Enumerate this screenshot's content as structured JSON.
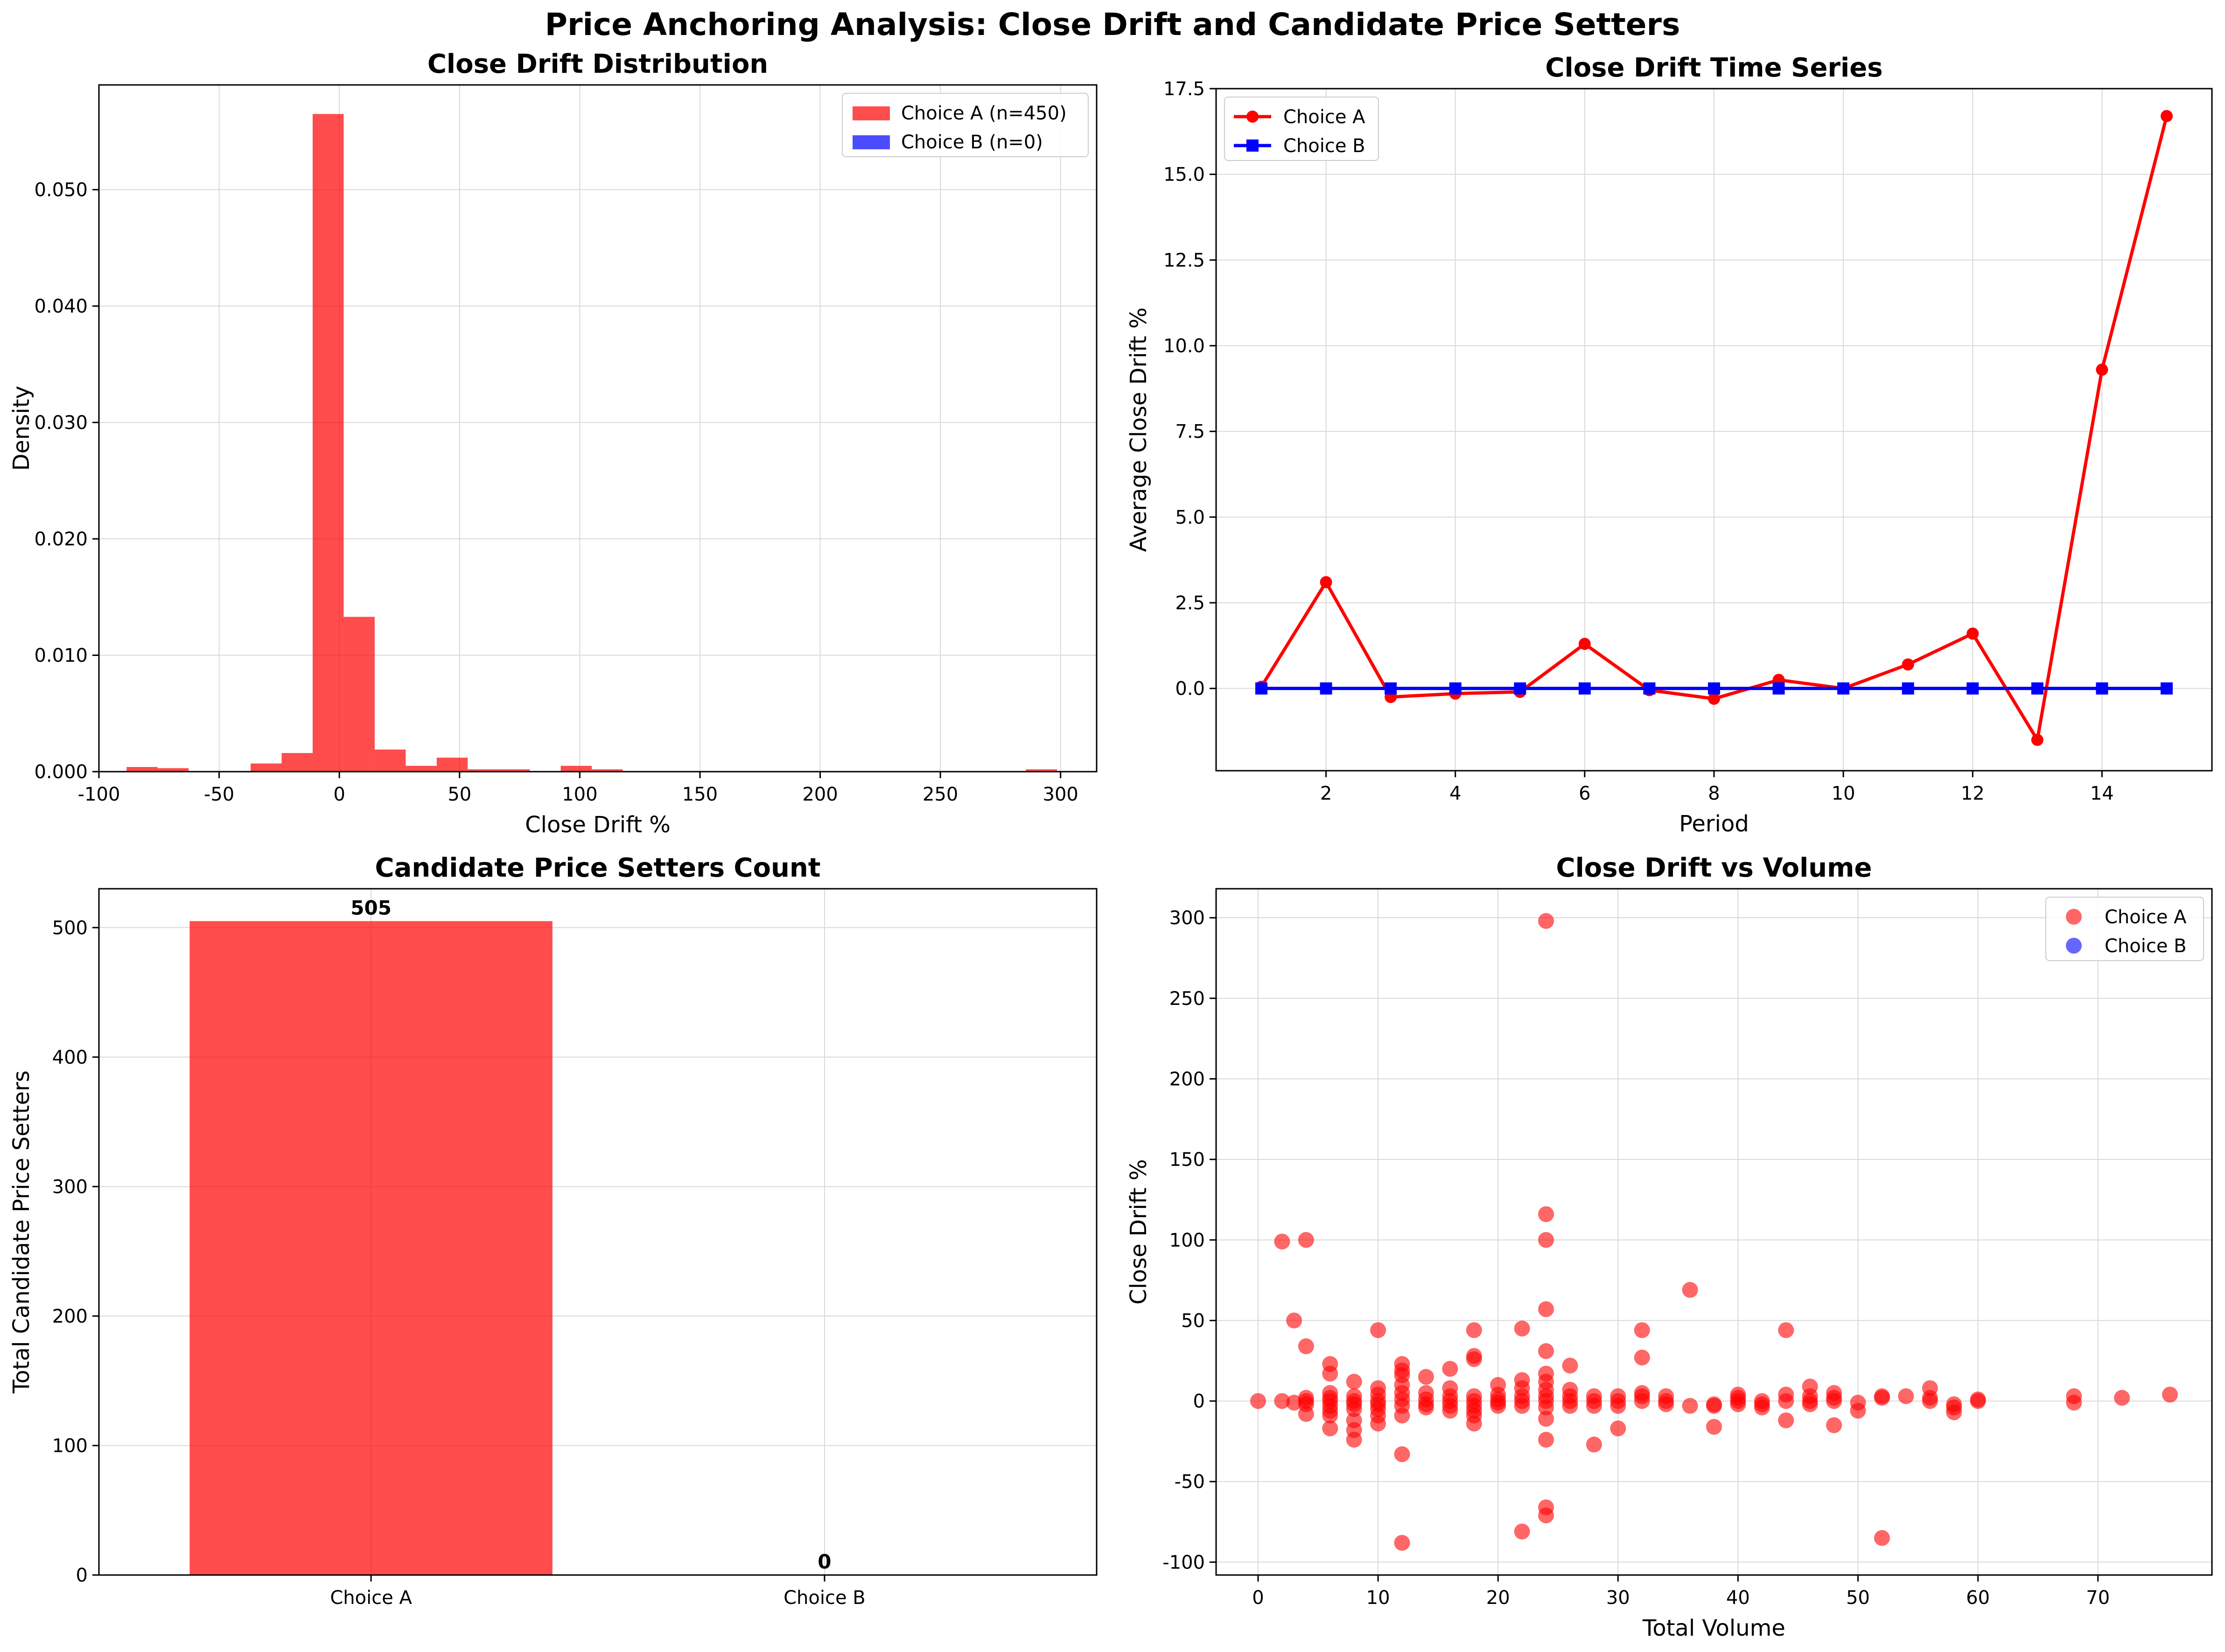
{
  "figure": {
    "title": "Price Anchoring Analysis: Close Drift and Candidate Price Setters"
  },
  "colors": {
    "choice_a": "#ff0000",
    "choice_b": "#0000ff",
    "grid": "#d9d9d9",
    "text": "#000000"
  },
  "chart_data": [
    {
      "id": "hist",
      "type": "bar",
      "title": "Close Drift Distribution",
      "xlabel": "Close Drift %",
      "ylabel": "Density",
      "xlim": [
        -100,
        315
      ],
      "ylim": [
        0,
        0.059
      ],
      "xticks": [
        -100,
        -50,
        0,
        50,
        100,
        150,
        200,
        250,
        300
      ],
      "yticks": [
        0.0,
        0.01,
        0.02,
        0.03,
        0.04,
        0.05
      ],
      "ytick_labels": [
        "0.000",
        "0.010",
        "0.020",
        "0.030",
        "0.040",
        "0.050"
      ],
      "grid": true,
      "legend_position": "upper right",
      "bin_width": 12.9,
      "series": [
        {
          "name": "Choice A (n=450)",
          "color": "#ff0000",
          "alpha": 0.7,
          "bins": [
            {
              "x0": -88.5,
              "value": 0.0004
            },
            {
              "x0": -75.6,
              "value": 0.0003
            },
            {
              "x0": -62.7,
              "value": 0.0
            },
            {
              "x0": -49.8,
              "value": 0.0
            },
            {
              "x0": -36.9,
              "value": 0.0007
            },
            {
              "x0": -24.0,
              "value": 0.0016
            },
            {
              "x0": -11.1,
              "value": 0.0565
            },
            {
              "x0": 1.8,
              "value": 0.0133
            },
            {
              "x0": 14.7,
              "value": 0.0019
            },
            {
              "x0": 27.6,
              "value": 0.0005
            },
            {
              "x0": 40.5,
              "value": 0.0012
            },
            {
              "x0": 53.4,
              "value": 0.0002
            },
            {
              "x0": 66.3,
              "value": 0.0002
            },
            {
              "x0": 79.2,
              "value": 0.0
            },
            {
              "x0": 92.1,
              "value": 0.0005
            },
            {
              "x0": 105.0,
              "value": 0.0002
            },
            {
              "x0": 285.6,
              "value": 0.0002
            }
          ]
        },
        {
          "name": "Choice B (n=0)",
          "color": "#0000ff",
          "alpha": 0.7,
          "bins": []
        }
      ]
    },
    {
      "id": "timeseries",
      "type": "line",
      "title": "Close Drift Time Series",
      "xlabel": "Period",
      "ylabel": "Average Close Drift %",
      "xlim": [
        0.3,
        15.7
      ],
      "ylim": [
        -2.4,
        17.5
      ],
      "xticks": [
        2,
        4,
        6,
        8,
        10,
        12,
        14
      ],
      "yticks": [
        0.0,
        2.5,
        5.0,
        7.5,
        10.0,
        12.5,
        15.0,
        17.5
      ],
      "ytick_labels": [
        "0.0",
        "2.5",
        "5.0",
        "7.5",
        "10.0",
        "12.5",
        "15.0",
        "17.5"
      ],
      "grid": true,
      "legend_position": "upper left",
      "x": [
        1,
        2,
        3,
        4,
        5,
        6,
        7,
        8,
        9,
        10,
        11,
        12,
        13,
        14,
        15
      ],
      "series": [
        {
          "name": "Choice A",
          "color": "#ff0000",
          "marker": "circle",
          "values": [
            0.05,
            3.1,
            -0.25,
            -0.15,
            -0.1,
            1.3,
            -0.05,
            -0.3,
            0.25,
            0.0,
            0.7,
            1.6,
            -1.5,
            9.3,
            16.7
          ]
        },
        {
          "name": "Choice B",
          "color": "#0000ff",
          "marker": "square",
          "values": [
            0,
            0,
            0,
            0,
            0,
            0,
            0,
            0,
            0,
            0,
            0,
            0,
            0,
            0,
            0
          ]
        }
      ]
    },
    {
      "id": "bars",
      "type": "bar",
      "title": "Candidate Price Setters Count",
      "xlabel": "",
      "ylabel": "Total Candidate Price Setters",
      "categories": [
        "Choice A",
        "Choice B"
      ],
      "values": [
        505,
        0
      ],
      "value_labels": [
        "505",
        "0"
      ],
      "ylim": [
        0,
        530
      ],
      "yticks": [
        0,
        100,
        200,
        300,
        400,
        500
      ],
      "ytick_labels": [
        "0",
        "100",
        "200",
        "300",
        "400",
        "500"
      ],
      "grid": true,
      "colors": [
        "#ff0000",
        "#0000ff"
      ],
      "alpha": 0.7
    },
    {
      "id": "scatter",
      "type": "scatter",
      "title": "Close Drift vs Volume",
      "xlabel": "Total Volume",
      "ylabel": "Close Drift %",
      "xlim": [
        -3.5,
        79.5
      ],
      "ylim": [
        -108,
        318
      ],
      "xticks": [
        0,
        10,
        20,
        30,
        40,
        50,
        60,
        70
      ],
      "yticks": [
        -100,
        -50,
        0,
        50,
        100,
        150,
        200,
        250,
        300
      ],
      "grid": true,
      "legend_position": "upper right",
      "series": [
        {
          "name": "Choice A",
          "color": "#ff0000",
          "alpha": 0.6,
          "points": [
            [
              0,
              0
            ],
            [
              2,
              99
            ],
            [
              2,
              0
            ],
            [
              3,
              50
            ],
            [
              3,
              -1
            ],
            [
              4,
              100
            ],
            [
              4,
              34
            ],
            [
              4,
              2
            ],
            [
              4,
              -2
            ],
            [
              4,
              -8
            ],
            [
              4,
              0
            ],
            [
              6,
              23
            ],
            [
              6,
              17
            ],
            [
              6,
              5
            ],
            [
              6,
              0
            ],
            [
              6,
              -3
            ],
            [
              6,
              -6
            ],
            [
              6,
              -9
            ],
            [
              6,
              -17
            ],
            [
              6,
              2
            ],
            [
              8,
              12
            ],
            [
              8,
              3
            ],
            [
              8,
              0
            ],
            [
              8,
              -2
            ],
            [
              8,
              -5
            ],
            [
              8,
              -12
            ],
            [
              8,
              -18
            ],
            [
              8,
              -24
            ],
            [
              10,
              44
            ],
            [
              10,
              8
            ],
            [
              10,
              4
            ],
            [
              10,
              0
            ],
            [
              10,
              -2
            ],
            [
              10,
              -5
            ],
            [
              10,
              -9
            ],
            [
              10,
              -14
            ],
            [
              12,
              23
            ],
            [
              12,
              19
            ],
            [
              12,
              16
            ],
            [
              12,
              10
            ],
            [
              12,
              5
            ],
            [
              12,
              1
            ],
            [
              12,
              -3
            ],
            [
              12,
              -9
            ],
            [
              12,
              -33
            ],
            [
              12,
              -88
            ],
            [
              14,
              15
            ],
            [
              14,
              5
            ],
            [
              14,
              1
            ],
            [
              14,
              -2
            ],
            [
              14,
              -4
            ],
            [
              16,
              20
            ],
            [
              16,
              8
            ],
            [
              16,
              3
            ],
            [
              16,
              0
            ],
            [
              16,
              -3
            ],
            [
              16,
              -6
            ],
            [
              18,
              44
            ],
            [
              18,
              28
            ],
            [
              18,
              26
            ],
            [
              18,
              3
            ],
            [
              18,
              0
            ],
            [
              18,
              -3
            ],
            [
              18,
              -6
            ],
            [
              18,
              -9
            ],
            [
              18,
              -14
            ],
            [
              20,
              10
            ],
            [
              20,
              4
            ],
            [
              20,
              1
            ],
            [
              20,
              -1
            ],
            [
              20,
              -3
            ],
            [
              22,
              45
            ],
            [
              22,
              13
            ],
            [
              22,
              8
            ],
            [
              22,
              3
            ],
            [
              22,
              0
            ],
            [
              22,
              -3
            ],
            [
              22,
              -81
            ],
            [
              24,
              298
            ],
            [
              24,
              116
            ],
            [
              24,
              100
            ],
            [
              24,
              57
            ],
            [
              24,
              31
            ],
            [
              24,
              17
            ],
            [
              24,
              12
            ],
            [
              24,
              7
            ],
            [
              24,
              3
            ],
            [
              24,
              0
            ],
            [
              24,
              -4
            ],
            [
              24,
              -11
            ],
            [
              24,
              -24
            ],
            [
              24,
              -66
            ],
            [
              24,
              -71
            ],
            [
              26,
              22
            ],
            [
              26,
              7
            ],
            [
              26,
              3
            ],
            [
              26,
              0
            ],
            [
              26,
              -3
            ],
            [
              28,
              3
            ],
            [
              28,
              0
            ],
            [
              28,
              -3
            ],
            [
              28,
              -27
            ],
            [
              30,
              3
            ],
            [
              30,
              0
            ],
            [
              30,
              -3
            ],
            [
              30,
              -17
            ],
            [
              32,
              44
            ],
            [
              32,
              27
            ],
            [
              32,
              5
            ],
            [
              32,
              3
            ],
            [
              32,
              0
            ],
            [
              34,
              3
            ],
            [
              34,
              0
            ],
            [
              34,
              -2
            ],
            [
              36,
              69
            ],
            [
              36,
              -3
            ],
            [
              38,
              -2
            ],
            [
              38,
              -3
            ],
            [
              38,
              -16
            ],
            [
              40,
              4
            ],
            [
              40,
              2
            ],
            [
              40,
              0
            ],
            [
              40,
              -2
            ],
            [
              42,
              0
            ],
            [
              42,
              -2
            ],
            [
              42,
              -4
            ],
            [
              44,
              44
            ],
            [
              44,
              4
            ],
            [
              44,
              0
            ],
            [
              44,
              -12
            ],
            [
              46,
              9
            ],
            [
              46,
              3
            ],
            [
              46,
              0
            ],
            [
              46,
              -2
            ],
            [
              48,
              5
            ],
            [
              48,
              2
            ],
            [
              48,
              0
            ],
            [
              48,
              -15
            ],
            [
              50,
              -1
            ],
            [
              50,
              -6
            ],
            [
              52,
              2
            ],
            [
              52,
              3
            ],
            [
              52,
              -85
            ],
            [
              54,
              3
            ],
            [
              56,
              8
            ],
            [
              56,
              2
            ],
            [
              56,
              0
            ],
            [
              58,
              -2
            ],
            [
              58,
              -4
            ],
            [
              58,
              -7
            ],
            [
              60,
              1
            ],
            [
              60,
              0
            ],
            [
              68,
              3
            ],
            [
              68,
              -1
            ],
            [
              72,
              2
            ],
            [
              76,
              4
            ]
          ]
        },
        {
          "name": "Choice B",
          "color": "#0000ff",
          "alpha": 0.6,
          "points": []
        }
      ]
    }
  ]
}
